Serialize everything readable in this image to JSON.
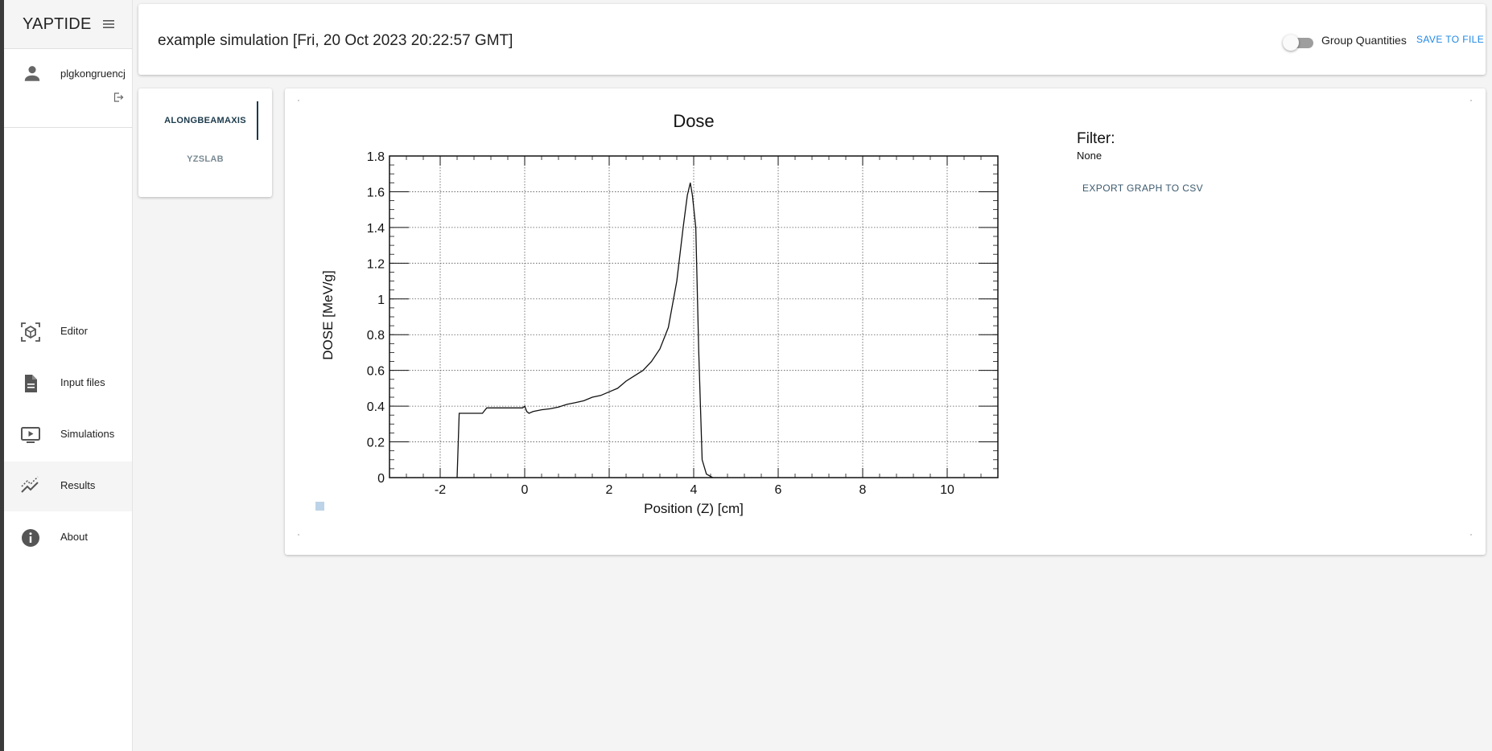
{
  "sidebar": {
    "brand": "YAPTIDE",
    "username": "plgkongruencj",
    "items": [
      {
        "label": "Editor",
        "icon": "editor-cube-icon"
      },
      {
        "label": "Input files",
        "icon": "file-icon"
      },
      {
        "label": "Simulations",
        "icon": "play-monitor-icon"
      },
      {
        "label": "Results",
        "icon": "results-chart-icon"
      },
      {
        "label": "About",
        "icon": "info-icon"
      }
    ],
    "active_item": "Results"
  },
  "header": {
    "title": "example simulation [Fri, 20 Oct 2023 20:22:57 GMT]",
    "toggle_label": "Group Quantities",
    "toggle_on": false,
    "save_label": "SAVE TO FILE"
  },
  "tabs": [
    {
      "label": "ALONGBEAMAXIS",
      "active": true
    },
    {
      "label": "YZSLAB",
      "active": false
    }
  ],
  "filter": {
    "title": "Filter:",
    "value": "None",
    "export_label": "EXPORT GRAPH TO CSV"
  },
  "colors": {
    "accent": "#1e88e5",
    "tab_active": "#1b3a4b",
    "line": "#111111"
  },
  "chart_data": {
    "type": "line",
    "title": "Dose",
    "xlabel": "Position (Z) [cm]",
    "ylabel": "DOSE [MeV/g]",
    "xlim": [
      -3.2,
      11.2
    ],
    "ylim": [
      0,
      1.8
    ],
    "xticks": [
      -2,
      0,
      2,
      4,
      6,
      8,
      10
    ],
    "yticks": [
      0,
      0.2,
      0.4,
      0.6,
      0.8,
      1,
      1.2,
      1.4,
      1.6,
      1.8
    ],
    "grid": true,
    "series": [
      {
        "x": [
          -1.6,
          -1.55,
          -1.45,
          -1.0,
          -0.9,
          -0.5,
          -0.05,
          0.0,
          0.05,
          0.1,
          0.2,
          0.4,
          0.6,
          0.8,
          1.0,
          1.2,
          1.4,
          1.6,
          1.8,
          2.0,
          2.2,
          2.4,
          2.6,
          2.8,
          3.0,
          3.2,
          3.4,
          3.6,
          3.75,
          3.85,
          3.92,
          3.97,
          4.05,
          4.12,
          4.2,
          4.3,
          4.45
        ],
        "y": [
          0,
          0.36,
          0.36,
          0.36,
          0.39,
          0.39,
          0.39,
          0.4,
          0.37,
          0.36,
          0.37,
          0.38,
          0.385,
          0.395,
          0.41,
          0.42,
          0.43,
          0.45,
          0.46,
          0.48,
          0.5,
          0.54,
          0.57,
          0.6,
          0.65,
          0.72,
          0.84,
          1.1,
          1.4,
          1.58,
          1.65,
          1.58,
          1.4,
          0.7,
          0.1,
          0.02,
          0
        ]
      }
    ]
  }
}
